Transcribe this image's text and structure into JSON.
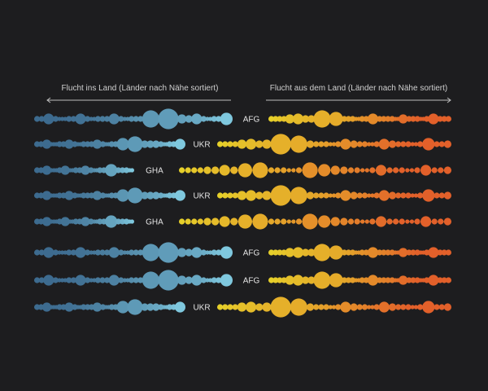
{
  "chart_data": {
    "type": "scatter",
    "title": "",
    "left_header": "Flucht ins Land (Länder nach Nähe sortiert)",
    "right_header": "Flucht aus dem Land (Länder nach Nähe sortiert)",
    "colors": {
      "background": "#1d1d1f",
      "in_far": "#3d6b8f",
      "in_near": "#7fc8de",
      "out_near": "#e6d02a",
      "out_far": "#e2602a",
      "axis": "#bdbdbd"
    },
    "countries": {
      "AFG": {
        "in": [
          2,
          2,
          5,
          2,
          1,
          1,
          1,
          2,
          2,
          5,
          2,
          1,
          1,
          2,
          2,
          2,
          5,
          2,
          1,
          1,
          2,
          2,
          2,
          9,
          11,
          4,
          3,
          5,
          2,
          1,
          1,
          2,
          2,
          6
        ],
        "out": [
          2,
          2,
          2,
          2,
          4,
          5,
          3,
          3,
          9,
          7,
          2,
          2,
          2,
          1,
          1,
          2,
          2,
          5,
          2,
          2,
          2,
          2,
          1,
          1,
          4,
          2,
          2,
          2,
          1,
          1,
          2,
          5,
          2,
          2,
          2
        ]
      },
      "UKR": {
        "in": [
          2,
          2,
          4,
          1,
          1,
          1,
          2,
          2,
          4,
          2,
          1,
          1,
          2,
          2,
          2,
          4,
          2,
          1,
          1,
          2,
          2,
          6,
          8,
          3,
          3,
          3,
          2,
          1,
          1,
          2,
          2,
          5
        ],
        "out": [
          2,
          2,
          2,
          2,
          4,
          5,
          3,
          4,
          11,
          9,
          3,
          2,
          2,
          2,
          1,
          1,
          2,
          5,
          3,
          2,
          2,
          1,
          1,
          2,
          5,
          3,
          2,
          2,
          2,
          1,
          1,
          2,
          6,
          2,
          2,
          3
        ]
      },
      "GHA": {
        "in": [
          2,
          2,
          4,
          1,
          1,
          1,
          2,
          4,
          1,
          1,
          2,
          2,
          4,
          2,
          1,
          1,
          2,
          2,
          6,
          2,
          2,
          2,
          1,
          1
        ],
        "out": [
          2,
          2,
          2,
          2,
          3,
          3,
          5,
          3,
          7,
          8,
          2,
          2,
          2,
          1,
          1,
          2,
          8,
          6,
          4,
          3,
          2,
          2,
          1,
          1,
          2,
          5,
          2,
          2,
          2,
          1,
          1,
          2,
          5,
          2,
          2,
          3
        ]
      }
    },
    "rows": [
      {
        "label": "AFG"
      },
      {
        "label": "UKR"
      },
      {
        "label": "GHA"
      },
      {
        "label": "UKR"
      },
      {
        "label": "GHA"
      },
      {
        "label": "AFG"
      },
      {
        "label": "AFG"
      },
      {
        "label": "UKR"
      }
    ]
  }
}
